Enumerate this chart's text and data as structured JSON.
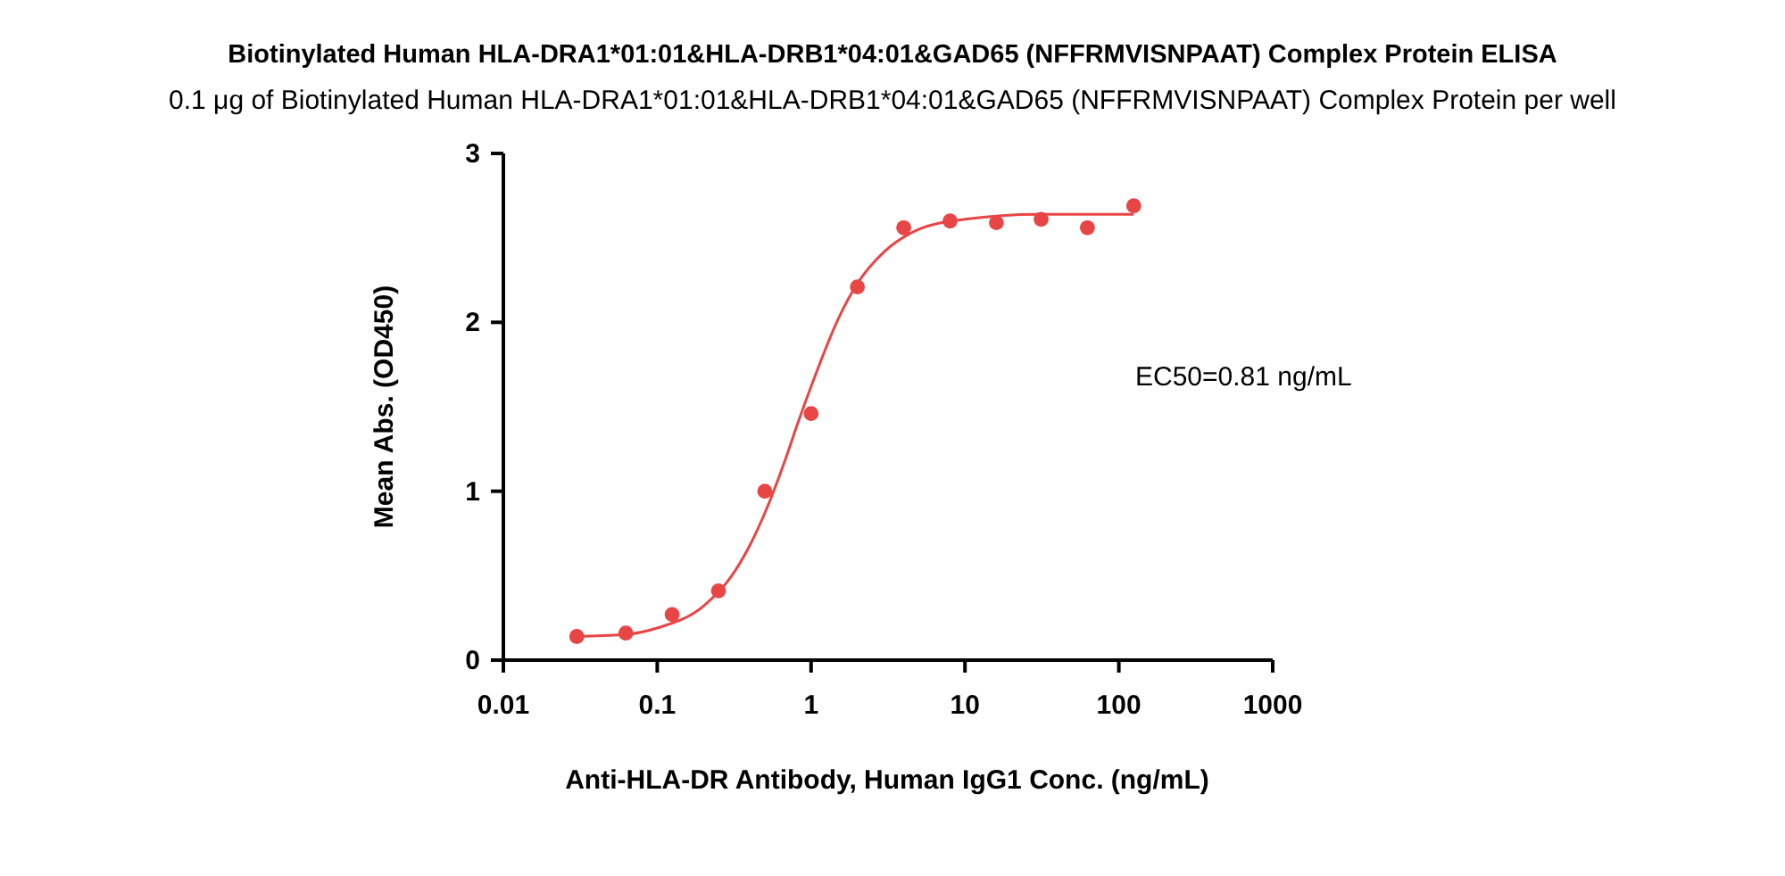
{
  "chart_data": {
    "type": "scatter",
    "title": "Biotinylated Human HLA-DRA1*01:01&HLA-DRB1*04:01&GAD65 (NFFRMVISNPAAT) Complex Protein ELISA",
    "subtitle": "0.1 μg of Biotinylated Human HLA-DRA1*01:01&HLA-DRB1*04:01&GAD65 (NFFRMVISNPAAT) Complex Protein per well",
    "xlabel": "Anti-HLA-DR Antibody, Human IgG1 Conc. (ng/mL)",
    "ylabel": "Mean Abs. (OD450)",
    "annotations": [
      "EC50=0.81 ng/mL"
    ],
    "log": "x",
    "xlim": [
      0.01,
      1000
    ],
    "xticks": [
      0.01,
      0.1,
      1,
      10,
      100,
      1000
    ],
    "ylim": [
      0,
      3
    ],
    "yticks": [
      0,
      1,
      2,
      3
    ],
    "grid": false,
    "series": [
      {
        "color": "#e84545",
        "marker": "circle",
        "x": [
          0.03,
          0.0625,
          0.125,
          0.25,
          0.5,
          1,
          2,
          4,
          8,
          16,
          31.25,
          62.5,
          125
        ],
        "values": [
          0.14,
          0.16,
          0.27,
          0.41,
          1.0,
          1.46,
          2.21,
          2.56,
          2.6,
          2.59,
          2.61,
          2.56,
          2.69
        ]
      },
      {
        "type": "line",
        "color": "#e84545",
        "marker": "none",
        "x": [
          0.03,
          0.06,
          0.1,
          0.2,
          0.3,
          0.4,
          0.5,
          0.7,
          0.81,
          1,
          1.5,
          2,
          3,
          5,
          10,
          30,
          125
        ],
        "values": [
          0.14,
          0.15,
          0.19,
          0.32,
          0.49,
          0.68,
          0.87,
          1.22,
          1.39,
          1.62,
          2.02,
          2.23,
          2.42,
          2.55,
          2.61,
          2.64,
          2.64
        ]
      }
    ]
  }
}
